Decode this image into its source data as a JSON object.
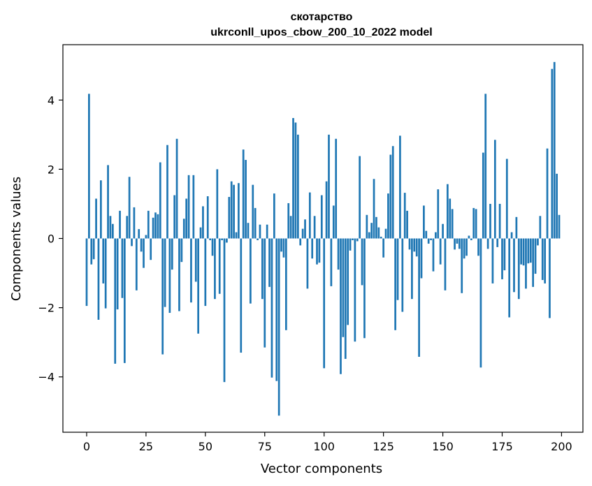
{
  "chart_data": {
    "type": "bar",
    "title": "скотарство",
    "subtitle": "ukrconll_upos_cbow_200_10_2022 model",
    "xlabel": "Vector components",
    "ylabel": "Components values",
    "xlim": [
      -10,
      209
    ],
    "ylim": [
      -5.6,
      5.6
    ],
    "xticks": [
      0,
      25,
      50,
      75,
      100,
      125,
      150,
      175,
      200
    ],
    "yticks": [
      -4,
      -2,
      0,
      2,
      4
    ],
    "xtick_labels": [
      "0",
      "25",
      "50",
      "75",
      "100",
      "125",
      "150",
      "175",
      "200"
    ],
    "ytick_labels": [
      "−4",
      "−2",
      "0",
      "2",
      "4"
    ],
    "bar_color": "#1f77b4",
    "grid": false,
    "x": [
      0,
      1,
      2,
      3,
      4,
      5,
      6,
      7,
      8,
      9,
      10,
      11,
      12,
      13,
      14,
      15,
      16,
      17,
      18,
      19,
      20,
      21,
      22,
      23,
      24,
      25,
      26,
      27,
      28,
      29,
      30,
      31,
      32,
      33,
      34,
      35,
      36,
      37,
      38,
      39,
      40,
      41,
      42,
      43,
      44,
      45,
      46,
      47,
      48,
      49,
      50,
      51,
      52,
      53,
      54,
      55,
      56,
      57,
      58,
      59,
      60,
      61,
      62,
      63,
      64,
      65,
      66,
      67,
      68,
      69,
      70,
      71,
      72,
      73,
      74,
      75,
      76,
      77,
      78,
      79,
      80,
      81,
      82,
      83,
      84,
      85,
      86,
      87,
      88,
      89,
      90,
      91,
      92,
      93,
      94,
      95,
      96,
      97,
      98,
      99,
      100,
      101,
      102,
      103,
      104,
      105,
      106,
      107,
      108,
      109,
      110,
      111,
      112,
      113,
      114,
      115,
      116,
      117,
      118,
      119,
      120,
      121,
      122,
      123,
      124,
      125,
      126,
      127,
      128,
      129,
      130,
      131,
      132,
      133,
      134,
      135,
      136,
      137,
      138,
      139,
      140,
      141,
      142,
      143,
      144,
      145,
      146,
      147,
      148,
      149,
      150,
      151,
      152,
      153,
      154,
      155,
      156,
      157,
      158,
      159,
      160,
      161,
      162,
      163,
      164,
      165,
      166,
      167,
      168,
      169,
      170,
      171,
      172,
      173,
      174,
      175,
      176,
      177,
      178,
      179,
      180,
      181,
      182,
      183,
      184,
      185,
      186,
      187,
      188,
      189,
      190,
      191,
      192,
      193,
      194,
      195,
      196,
      197,
      198,
      199
    ],
    "values": [
      -1.95,
      4.18,
      -0.75,
      -0.6,
      1.15,
      -2.35,
      1.68,
      -1.3,
      -2.02,
      2.12,
      0.65,
      0.42,
      -3.62,
      -2.05,
      0.8,
      -1.72,
      -3.6,
      0.65,
      1.78,
      -0.22,
      0.9,
      -1.5,
      0.27,
      -0.38,
      -0.85,
      0.1,
      0.8,
      -0.62,
      0.6,
      0.75,
      0.7,
      2.2,
      -3.35,
      -1.98,
      2.7,
      -2.15,
      -0.9,
      1.25,
      2.88,
      -2.1,
      -0.68,
      0.57,
      1.15,
      1.83,
      -1.85,
      1.83,
      -1.25,
      -2.75,
      0.32,
      0.93,
      -1.95,
      1.22,
      -0.05,
      -0.5,
      -1.75,
      2.0,
      -1.6,
      -0.05,
      -4.15,
      -0.12,
      1.2,
      1.65,
      1.55,
      0.18,
      1.6,
      -3.3,
      2.57,
      2.27,
      0.45,
      -1.88,
      1.55,
      0.88,
      -0.05,
      0.4,
      -1.75,
      -3.15,
      0.4,
      -1.4,
      -4.02,
      1.3,
      -4.12,
      -5.12,
      -0.38,
      -0.55,
      -2.65,
      1.02,
      0.65,
      3.48,
      3.35,
      3.0,
      -0.2,
      0.28,
      0.55,
      -1.45,
      1.33,
      -0.58,
      0.65,
      -0.75,
      -0.7,
      1.25,
      -3.75,
      1.65,
      3.0,
      -1.38,
      0.95,
      2.88,
      -0.9,
      -3.92,
      -2.85,
      -3.48,
      -2.5,
      -0.35,
      -0.05,
      -2.98,
      -0.08,
      2.38,
      -1.35,
      -2.88,
      0.68,
      0.18,
      0.45,
      1.72,
      0.62,
      0.32,
      0.05,
      -0.55,
      0.28,
      1.3,
      2.42,
      2.67,
      -2.65,
      -1.78,
      2.97,
      -2.12,
      1.32,
      0.8,
      -0.32,
      -1.75,
      -0.38,
      -0.52,
      -3.42,
      -1.15,
      0.95,
      0.22,
      -0.15,
      -0.05,
      -0.95,
      0.18,
      1.42,
      -0.75,
      0.42,
      -1.5,
      1.57,
      1.15,
      0.85,
      -0.32,
      -0.15,
      -0.3,
      -1.58,
      -0.58,
      -0.5,
      0.08,
      -0.05,
      0.88,
      0.85,
      -0.5,
      -3.73,
      2.48,
      4.18,
      -0.3,
      1.0,
      -1.3,
      2.85,
      -0.25,
      1.0,
      -1.18,
      -0.92,
      2.3,
      -2.28,
      0.18,
      -1.55,
      0.62,
      -1.75,
      -0.75,
      -0.78,
      -1.45,
      -0.72,
      -0.7,
      -1.4,
      -1.02,
      -0.2,
      0.65,
      -1.2,
      -1.3,
      2.6,
      -2.3,
      4.9,
      5.1,
      1.87,
      0.68
    ]
  }
}
